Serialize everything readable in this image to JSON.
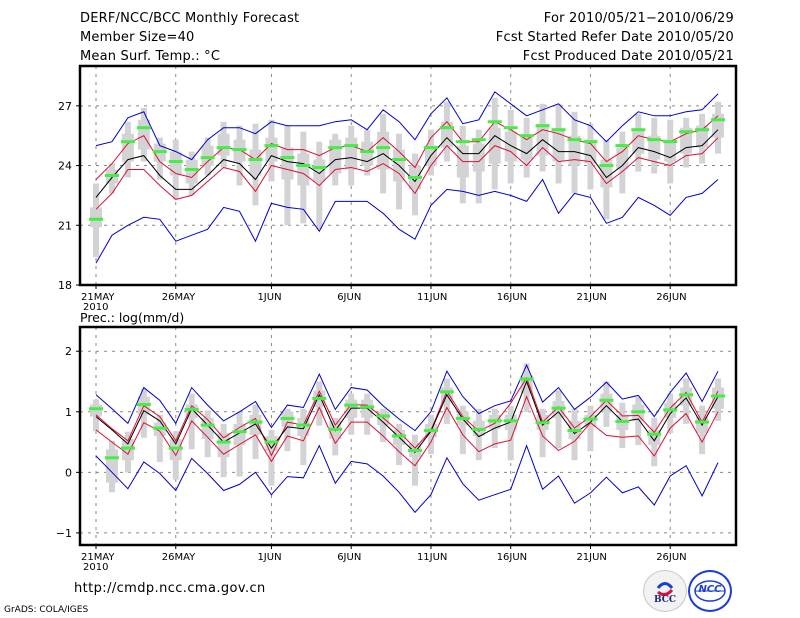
{
  "header": {
    "left": [
      "DERF/NCC/BCC Monthly Forecast",
      "Member Size=40",
      "Mean Surf. Temp.: °C"
    ],
    "right": [
      "For 2010/05/21−2010/06/29",
      "Fcst Started Refer Date 2010/05/20",
      "Fcst Produced Date 2010/05/21"
    ]
  },
  "footer": {
    "url": "http://cmdp.ncc.cma.gov.cn",
    "credit": "GrADS: COLA/IGES",
    "logos": [
      {
        "name": "bcc-logo",
        "text": "BCC"
      },
      {
        "name": "ncc-logo",
        "text": "NCC"
      }
    ]
  },
  "colors": {
    "ensemble_max_min": "#0000cc",
    "percentile_bounds": "#dd1133",
    "ensemble_mean": "#000000",
    "median_marker": "#44ee44",
    "spread_bars": "#d3d3d6",
    "grid": "#888888"
  },
  "chart_data": [
    {
      "type": "line",
      "title": "Mean Surf. Temp.: °C",
      "ylabel": "°C",
      "ylim": [
        18,
        29
      ],
      "yticks": [
        18,
        21,
        24,
        27
      ],
      "x_days": 40,
      "xticks": [
        {
          "day": 0,
          "label": "21MAY",
          "sublabel": "2010"
        },
        {
          "day": 5,
          "label": "26MAY"
        },
        {
          "day": 11,
          "label": "1JUN"
        },
        {
          "day": 16,
          "label": "6JUN"
        },
        {
          "day": 21,
          "label": "11JUN"
        },
        {
          "day": 26,
          "label": "16JUN"
        },
        {
          "day": 31,
          "label": "21JUN"
        },
        {
          "day": 36,
          "label": "26JUN"
        }
      ],
      "grid": true,
      "series": [
        {
          "name": "ensemble-max",
          "color_key": "ensemble_max_min",
          "values": [
            25.0,
            25.2,
            26.4,
            26.7,
            25.0,
            24.7,
            24.3,
            25.3,
            25.9,
            25.9,
            25.6,
            26.2,
            26.0,
            26.0,
            26.0,
            26.2,
            26.3,
            25.8,
            26.8,
            26.2,
            25.3,
            26.6,
            27.4,
            26.1,
            26.3,
            27.7,
            27.1,
            26.5,
            26.8,
            27.1,
            26.3,
            26.0,
            25.2,
            26.0,
            26.7,
            26.5,
            26.5,
            26.7,
            26.8,
            27.6
          ]
        },
        {
          "name": "upper-bound",
          "color_key": "percentile_bounds",
          "values": [
            23.3,
            24.1,
            25.1,
            25.5,
            24.2,
            23.6,
            23.4,
            24.2,
            24.9,
            24.8,
            24.3,
            25.1,
            24.8,
            24.8,
            24.5,
            24.9,
            25.0,
            24.7,
            25.4,
            24.7,
            23.9,
            25.4,
            26.2,
            25.2,
            25.2,
            26.2,
            25.8,
            25.3,
            25.8,
            25.6,
            25.3,
            25.1,
            24.2,
            24.7,
            25.5,
            25.3,
            25.2,
            25.6,
            25.8,
            26.5
          ]
        },
        {
          "name": "ensemble-mean",
          "color_key": "ensemble_mean",
          "values": [
            22.4,
            23.4,
            24.3,
            24.5,
            23.5,
            22.8,
            22.8,
            23.5,
            24.3,
            24.1,
            23.3,
            24.5,
            24.2,
            24.1,
            23.6,
            24.3,
            24.4,
            24.2,
            24.6,
            24.0,
            23.2,
            24.5,
            25.4,
            24.6,
            24.6,
            25.5,
            25.0,
            24.6,
            25.3,
            24.7,
            24.7,
            24.5,
            23.4,
            24.0,
            24.9,
            24.7,
            24.4,
            24.9,
            25.0,
            25.8
          ]
        },
        {
          "name": "lower-bound",
          "color_key": "percentile_bounds",
          "values": [
            21.8,
            22.6,
            23.8,
            23.8,
            23.0,
            22.3,
            22.5,
            23.2,
            23.9,
            23.7,
            22.7,
            24.0,
            23.8,
            23.6,
            23.0,
            23.8,
            23.9,
            23.7,
            24.1,
            23.6,
            22.6,
            24.0,
            25.0,
            24.2,
            24.2,
            25.0,
            24.7,
            24.0,
            24.9,
            24.2,
            24.3,
            24.2,
            23.1,
            23.7,
            24.4,
            24.2,
            24.0,
            24.5,
            24.6,
            25.4
          ]
        },
        {
          "name": "ensemble-min",
          "color_key": "ensemble_max_min",
          "values": [
            19.1,
            20.5,
            21.0,
            21.4,
            21.3,
            20.2,
            20.5,
            20.8,
            21.9,
            21.7,
            20.2,
            22.1,
            21.9,
            21.8,
            20.7,
            22.2,
            22.2,
            22.2,
            21.6,
            20.8,
            20.3,
            22.0,
            22.8,
            22.7,
            22.5,
            22.7,
            22.5,
            22.2,
            23.3,
            21.6,
            22.6,
            22.4,
            21.1,
            21.4,
            22.4,
            22.0,
            21.5,
            22.4,
            22.6,
            23.3
          ]
        }
      ],
      "median": [
        21.3,
        23.5,
        25.2,
        25.9,
        24.7,
        24.2,
        23.8,
        24.4,
        24.9,
        24.8,
        24.3,
        25.0,
        24.4,
        24.0,
        23.9,
        24.9,
        25.0,
        24.7,
        24.9,
        24.3,
        23.4,
        24.9,
        25.9,
        25.2,
        25.3,
        26.2,
        25.9,
        25.5,
        26.0,
        25.8,
        25.3,
        25.2,
        24.0,
        25.0,
        25.8,
        25.3,
        25.2,
        25.7,
        25.8,
        26.3
      ],
      "whisker_low": [
        19.4,
        22.6,
        23.4,
        24.2,
        23.3,
        22.3,
        22.5,
        23.5,
        23.9,
        23.0,
        22.0,
        23.2,
        21.0,
        21.1,
        20.8,
        23.0,
        23.0,
        23.5,
        22.6,
        21.8,
        21.5,
        23.5,
        24.2,
        22.1,
        22.1,
        22.8,
        23.1,
        23.4,
        23.7,
        23.1,
        22.6,
        22.8,
        21.3,
        22.6,
        23.7,
        23.6,
        23.1,
        23.9,
        24.1,
        24.6
      ],
      "whisker_high": [
        23.1,
        24.1,
        26.2,
        26.9,
        25.4,
        25.3,
        24.7,
        25.4,
        26.2,
        26.0,
        26.1,
        26.3,
        26.0,
        25.7,
        25.2,
        25.6,
        26.0,
        25.8,
        26.6,
        25.6,
        24.6,
        25.8,
        27.2,
        26.0,
        25.8,
        27.4,
        26.8,
        26.4,
        27.1,
        27.1,
        26.7,
        26.1,
        25.3,
        25.7,
        26.6,
        26.4,
        26.3,
        26.4,
        26.6,
        27.2
      ],
      "box_low": [
        20.9,
        23.1,
        24.2,
        24.8,
        24.2,
        23.5,
        23.1,
        24.0,
        24.5,
        24.2,
        23.5,
        24.2,
        23.3,
        23.0,
        23.2,
        23.6,
        23.8,
        24.0,
        23.8,
        23.2,
        22.8,
        24.0,
        24.9,
        23.4,
        23.7,
        24.1,
        24.2,
        24.3,
        24.5,
        24.2,
        24.0,
        24.1,
        22.9,
        23.8,
        24.6,
        24.3,
        24.2,
        24.6,
        24.9,
        25.4
      ],
      "box_high": [
        21.9,
        23.8,
        25.6,
        26.3,
        25.1,
        24.7,
        24.3,
        25.0,
        25.6,
        25.3,
        24.8,
        25.4,
        24.9,
        24.6,
        24.3,
        25.3,
        25.4,
        25.2,
        25.7,
        24.8,
        24.0,
        25.0,
        26.2,
        25.0,
        25.1,
        25.9,
        25.7,
        25.5,
        26.1,
        25.8,
        25.5,
        25.3,
        24.3,
        24.9,
        25.8,
        25.5,
        25.3,
        25.9,
        26.0,
        26.6
      ]
    },
    {
      "type": "line",
      "title": "Prec.: log(mm/d)",
      "ylabel": "log(mm/d)",
      "ylim": [
        -1.2,
        2.4
      ],
      "yticks": [
        -1,
        0,
        1,
        2
      ],
      "x_days": 40,
      "xticks": [
        {
          "day": 0,
          "label": "21MAY",
          "sublabel": "2010"
        },
        {
          "day": 5,
          "label": "26MAY"
        },
        {
          "day": 11,
          "label": "1JUN"
        },
        {
          "day": 16,
          "label": "6JUN"
        },
        {
          "day": 21,
          "label": "11JUN"
        },
        {
          "day": 26,
          "label": "16JUN"
        },
        {
          "day": 31,
          "label": "21JUN"
        },
        {
          "day": 36,
          "label": "26JUN"
        }
      ],
      "grid": true,
      "series": [
        {
          "name": "ensemble-max",
          "color_key": "ensemble_max_min",
          "values": [
            1.28,
            1.05,
            0.81,
            1.4,
            1.19,
            0.81,
            1.4,
            1.11,
            0.85,
            1.0,
            1.17,
            0.74,
            1.11,
            1.07,
            1.62,
            1.04,
            1.4,
            1.36,
            1.1,
            0.88,
            0.69,
            1.0,
            1.67,
            1.25,
            0.97,
            1.1,
            1.18,
            1.77,
            1.16,
            1.4,
            1.04,
            1.24,
            1.49,
            1.21,
            1.27,
            0.92,
            1.32,
            1.64,
            1.17,
            1.67
          ]
        },
        {
          "name": "upper-bound",
          "color_key": "percentile_bounds",
          "values": [
            0.95,
            0.72,
            0.52,
            1.1,
            0.92,
            0.52,
            1.1,
            0.87,
            0.57,
            0.74,
            0.89,
            0.28,
            0.83,
            0.78,
            1.34,
            0.78,
            1.12,
            1.11,
            0.9,
            0.67,
            0.4,
            0.69,
            1.34,
            0.92,
            0.68,
            0.81,
            1.14,
            1.56,
            0.83,
            1.08,
            0.73,
            0.92,
            1.19,
            0.93,
            0.94,
            0.66,
            1.06,
            1.32,
            0.83,
            1.34
          ]
        },
        {
          "name": "ensemble-mean",
          "color_key": "ensemble_mean",
          "values": [
            0.92,
            0.7,
            0.47,
            1.02,
            0.85,
            0.47,
            1.05,
            0.78,
            0.5,
            0.65,
            0.8,
            0.4,
            0.75,
            0.72,
            1.28,
            0.69,
            1.06,
            1.06,
            0.83,
            0.58,
            0.33,
            0.68,
            1.28,
            0.88,
            0.59,
            0.73,
            0.83,
            1.5,
            0.78,
            1.0,
            0.64,
            0.83,
            1.1,
            0.84,
            0.88,
            0.52,
            0.97,
            1.23,
            0.78,
            1.25
          ]
        },
        {
          "name": "lower-bound",
          "color_key": "percentile_bounds",
          "values": [
            0.7,
            0.5,
            0.3,
            0.82,
            0.68,
            0.28,
            0.85,
            0.58,
            0.3,
            0.46,
            0.62,
            0.18,
            0.6,
            0.52,
            1.07,
            0.48,
            0.83,
            0.83,
            0.6,
            0.34,
            0.11,
            0.5,
            1.07,
            0.62,
            0.34,
            0.47,
            0.53,
            1.25,
            0.6,
            0.36,
            0.51,
            0.82,
            0.61,
            0.58,
            0.6,
            0.27,
            0.73,
            0.97,
            0.5,
            1.0
          ]
        },
        {
          "name": "ensemble-min",
          "color_key": "ensemble_max_min",
          "values": [
            0.27,
            0.0,
            -0.27,
            0.17,
            -0.02,
            -0.3,
            0.23,
            -0.02,
            -0.3,
            -0.2,
            0.0,
            -0.37,
            -0.07,
            -0.09,
            0.44,
            -0.18,
            0.18,
            0.14,
            -0.06,
            -0.33,
            -0.66,
            -0.37,
            0.24,
            -0.19,
            -0.46,
            -0.37,
            -0.28,
            0.44,
            -0.28,
            -0.06,
            -0.51,
            -0.34,
            -0.08,
            -0.34,
            -0.24,
            -0.54,
            -0.06,
            0.11,
            -0.39,
            0.16
          ]
        }
      ],
      "median": [
        1.05,
        0.24,
        0.4,
        1.12,
        0.73,
        0.4,
        1.04,
        0.78,
        0.5,
        0.67,
        0.83,
        0.5,
        0.89,
        0.78,
        1.22,
        0.71,
        1.11,
        1.08,
        0.93,
        0.6,
        0.36,
        0.69,
        1.33,
        0.89,
        0.71,
        0.85,
        0.85,
        1.54,
        0.82,
        1.06,
        0.69,
        0.88,
        1.19,
        0.84,
        1.0,
        0.63,
        1.03,
        1.28,
        0.83,
        1.26
      ],
      "whisker_low": [
        0.68,
        -0.33,
        0.0,
        0.57,
        0.17,
        -0.12,
        0.38,
        0.25,
        -0.08,
        -0.07,
        0.22,
        -0.22,
        0.35,
        0.12,
        0.77,
        0.28,
        0.62,
        0.62,
        0.5,
        0.12,
        -0.22,
        0.3,
        0.8,
        0.3,
        0.2,
        0.4,
        0.2,
        1.0,
        0.25,
        0.4,
        0.2,
        0.35,
        0.75,
        0.4,
        0.45,
        0.1,
        0.65,
        0.8,
        0.3,
        0.85
      ],
      "whisker_high": [
        1.2,
        0.52,
        0.67,
        1.38,
        0.95,
        0.68,
        1.3,
        1.02,
        0.8,
        1.0,
        1.12,
        0.7,
        1.05,
        1.05,
        1.5,
        0.9,
        1.3,
        1.3,
        1.05,
        0.8,
        0.62,
        0.95,
        1.55,
        1.1,
        1.05,
        1.05,
        1.1,
        1.8,
        1.05,
        1.35,
        1.05,
        1.1,
        1.5,
        1.15,
        1.25,
        0.9,
        1.3,
        1.55,
        1.1,
        1.55
      ],
      "box_low": [
        0.92,
        -0.17,
        0.2,
        0.95,
        0.6,
        0.2,
        0.9,
        0.55,
        0.25,
        0.45,
        0.62,
        0.35,
        0.75,
        0.6,
        1.08,
        0.55,
        0.9,
        0.9,
        0.78,
        0.45,
        0.25,
        0.58,
        1.15,
        0.78,
        0.6,
        0.72,
        0.7,
        1.3,
        0.7,
        0.9,
        0.55,
        0.75,
        1.0,
        0.7,
        0.85,
        0.45,
        0.9,
        1.1,
        0.65,
        1.05
      ],
      "box_high": [
        1.12,
        0.38,
        0.55,
        1.25,
        0.82,
        0.55,
        1.12,
        0.9,
        0.65,
        0.8,
        0.95,
        0.6,
        1.0,
        0.9,
        1.35,
        0.85,
        1.2,
        1.2,
        1.0,
        0.7,
        0.48,
        0.8,
        1.4,
        1.0,
        0.85,
        0.95,
        0.95,
        1.6,
        0.95,
        1.18,
        0.85,
        0.95,
        1.3,
        0.95,
        1.12,
        0.7,
        1.15,
        1.4,
        0.92,
        1.4
      ]
    }
  ]
}
